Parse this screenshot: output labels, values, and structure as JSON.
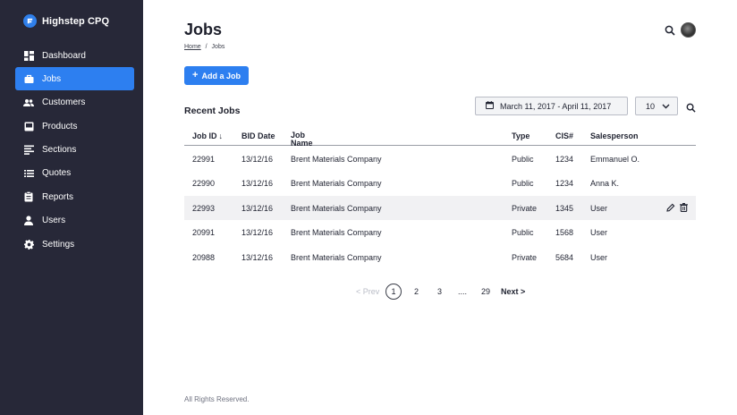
{
  "app": {
    "brand": "Highstep CPQ",
    "accent_color": "#2d7ff0",
    "sidebar_color": "#272838"
  },
  "sidebar": {
    "items": [
      {
        "label": "Dashboard",
        "icon": "dashboard-icon",
        "active": false
      },
      {
        "label": "Jobs",
        "icon": "briefcase-icon",
        "active": true
      },
      {
        "label": "Customers",
        "icon": "people-icon",
        "active": false
      },
      {
        "label": "Products",
        "icon": "inbox-icon",
        "active": false
      },
      {
        "label": "Sections",
        "icon": "sections-icon",
        "active": false
      },
      {
        "label": "Quotes",
        "icon": "list-icon",
        "active": false
      },
      {
        "label": "Reports",
        "icon": "clipboard-icon",
        "active": false
      },
      {
        "label": "Users",
        "icon": "user-icon",
        "active": false
      },
      {
        "label": "Settings",
        "icon": "gear-icon",
        "active": false
      }
    ]
  },
  "header": {
    "title": "Jobs",
    "breadcrumb": {
      "home": "Home",
      "separator": "/",
      "current": "Jobs"
    }
  },
  "toolbar": {
    "add_label": "Add a Job",
    "section_title": "Recent Jobs",
    "date_range": "March 11, 2017 -  April 11, 2017",
    "page_size": "10"
  },
  "table": {
    "columns": [
      "Job ID",
      "BID Date",
      "Job Name",
      "Type",
      "CIS#",
      "Salesperson"
    ],
    "sort_indicator": "↓",
    "rows": [
      {
        "job_id": "22991",
        "bid_date": "13/12/16",
        "job_name": "Brent Materials Company",
        "type": "Public",
        "cis": "1234",
        "salesperson": "Emmanuel O."
      },
      {
        "job_id": "22990",
        "bid_date": "13/12/16",
        "job_name": "Brent Materials Company",
        "type": "Public",
        "cis": "1234",
        "salesperson": "Anna K."
      },
      {
        "job_id": "22993",
        "bid_date": "13/12/16",
        "job_name": "Brent Materials Company",
        "type": "Private",
        "cis": "1345",
        "salesperson": "User"
      },
      {
        "job_id": "20991",
        "bid_date": "13/12/16",
        "job_name": "Brent Materials Company",
        "type": "Public",
        "cis": "1568",
        "salesperson": "User"
      },
      {
        "job_id": "20988",
        "bid_date": "13/12/16",
        "job_name": "Brent Materials Company",
        "type": "Private",
        "cis": "5684",
        "salesperson": "User"
      }
    ]
  },
  "pagination": {
    "prev": "< Prev",
    "pages": [
      "1",
      "2",
      "3",
      "....",
      "29"
    ],
    "current": "1",
    "next": "Next >"
  },
  "footer": {
    "text": "All Rights Reserved."
  }
}
